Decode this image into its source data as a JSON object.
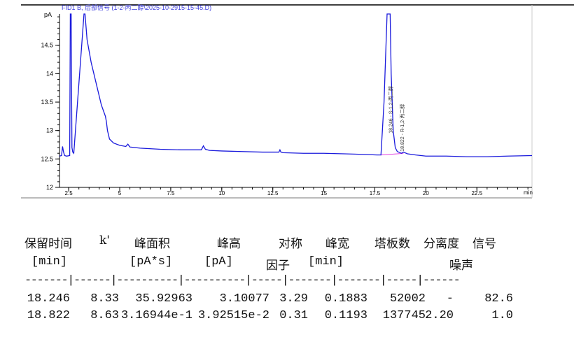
{
  "chart_data": {
    "type": "line",
    "title": "FID1 B, 后部信号 (1-2-丙二醇\\2025-10-2915-15-45.D)",
    "ylabel": "pA",
    "xlabel": "min",
    "xlim": [
      2.05,
      25.2
    ],
    "ylim": [
      12,
      15.05
    ],
    "xticks": [
      "2.5",
      "5",
      "7.5",
      "10",
      "12.5",
      "15",
      "17.5",
      "20",
      "22.5"
    ],
    "xtick_values": [
      2.5,
      5,
      7.5,
      10,
      12.5,
      15,
      17.5,
      20,
      22.5
    ],
    "yticks": [
      "12",
      "12.5",
      "13",
      "13.5",
      "14",
      "14.5"
    ],
    "ytick_values": [
      12,
      12.5,
      13,
      13.5,
      14,
      14.5
    ],
    "grid": false,
    "series": [
      {
        "color": "#1a1adc",
        "x": [
          2.05,
          2.15,
          2.2,
          2.25,
          2.3,
          2.4,
          2.55,
          2.58,
          2.62,
          2.66,
          2.7,
          2.75,
          3.25,
          3.3,
          3.4,
          3.5,
          3.6,
          3.7,
          3.8,
          3.9,
          4.0,
          4.1,
          4.2,
          4.3,
          4.35,
          4.4,
          4.5,
          4.7,
          5.0,
          5.3,
          5.4,
          5.5,
          6,
          7,
          8,
          9,
          9.1,
          9.2,
          9.4,
          10,
          11,
          12,
          12.8,
          12.85,
          12.9,
          13,
          14,
          15,
          16,
          17,
          17.6,
          17.8,
          17.95,
          18.1,
          18.25,
          18.3,
          18.4,
          18.5,
          18.6,
          18.8,
          18.9,
          19.1,
          19.5,
          20,
          21,
          22,
          23,
          24,
          25.2
        ],
        "y": [
          12.55,
          12.56,
          12.72,
          12.62,
          12.56,
          12.55,
          12.56,
          15.05,
          15.05,
          12.7,
          12.62,
          12.6,
          15.05,
          15.05,
          14.6,
          14.4,
          14.2,
          14.05,
          13.9,
          13.75,
          13.6,
          13.45,
          13.35,
          13.25,
          13.15,
          13.0,
          12.85,
          12.78,
          12.74,
          12.72,
          12.76,
          12.71,
          12.69,
          12.67,
          12.66,
          12.66,
          12.73,
          12.67,
          12.65,
          12.64,
          12.63,
          12.62,
          12.62,
          12.66,
          12.62,
          12.61,
          12.6,
          12.6,
          12.59,
          12.58,
          12.57,
          12.57,
          13.5,
          15.05,
          15.05,
          14.0,
          13.0,
          12.7,
          12.63,
          12.6,
          12.62,
          12.59,
          12.57,
          12.55,
          12.55,
          12.54,
          12.54,
          12.55,
          12.56
        ]
      }
    ],
    "baseline_color": "#e040e0",
    "annotations": [
      "18.246 - S-1,2-丙二醇",
      "18.822 - R-1,2-丙二醇"
    ]
  },
  "table": {
    "headers1": [
      "保留时间",
      "k'",
      "峰面积",
      "峰高",
      "对称",
      "峰宽",
      "塔板数",
      "分离度",
      "信号"
    ],
    "headers2": [
      "[min]",
      "[pA*s]",
      "[pA]",
      "因子",
      "[min]",
      "噪声"
    ],
    "separator": "-------|------|----------|----------|-----|-------|-------|-----|------",
    "rows": [
      [
        "18.246",
        "8.33",
        "35.92963",
        "3.10077",
        "3.29",
        "0.1883",
        "52002",
        "-",
        "82.6"
      ],
      [
        "18.822",
        "8.63",
        "3.16944e-1",
        "3.92515e-2",
        "0.31",
        "0.1193",
        "137745",
        "2.20",
        "1.0"
      ]
    ]
  }
}
